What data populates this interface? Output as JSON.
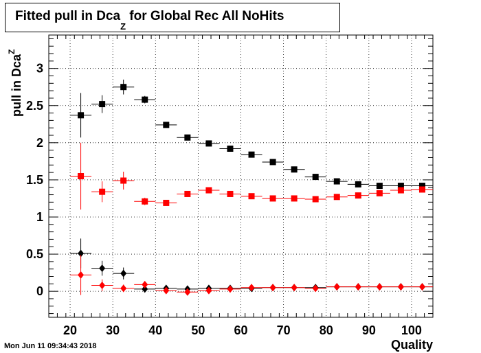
{
  "title": {
    "main": "Fitted pull in Dca",
    "sub": "Z",
    "rest": " for Global Rec All NoHits"
  },
  "ylabel": {
    "main": "pull in Dca",
    "sub": "Z"
  },
  "xlabel": "Quality",
  "timestamp": "Mon Jun 11 09:34:43 2018",
  "colors": {
    "black": "#000000",
    "red": "#ff0000",
    "grid": "#000000"
  },
  "chart_data": {
    "type": "scatter",
    "xlim": [
      15,
      105
    ],
    "ylim": [
      -0.35,
      3.45
    ],
    "grid": true,
    "xticks": [
      20,
      30,
      40,
      50,
      60,
      70,
      80,
      90,
      100
    ],
    "yticks": [
      0,
      0.5,
      1,
      1.5,
      2,
      2.5,
      3
    ],
    "ytick_labels": [
      "0",
      "0.5",
      "1",
      "1.5",
      "2",
      "2.5",
      "3"
    ],
    "series": [
      {
        "color": "black",
        "marker": "square",
        "x": [
          22.5,
          27.5,
          32.5,
          37.5,
          42.5,
          47.5,
          52.5,
          57.5,
          62.5,
          67.5,
          72.5,
          77.5,
          82.5,
          87.5,
          92.5,
          97.5,
          102.5
        ],
        "y": [
          2.37,
          2.52,
          2.75,
          2.58,
          2.24,
          2.07,
          1.99,
          1.92,
          1.84,
          1.74,
          1.64,
          1.54,
          1.48,
          1.44,
          1.42,
          1.42,
          1.42
        ],
        "yerr": [
          0.3,
          0.12,
          0.1,
          0.05,
          0.03,
          0.03,
          0.02,
          0.02,
          0.02,
          0.02,
          0.02,
          0.02,
          0.02,
          0.02,
          0.01,
          0.01,
          0.01
        ]
      },
      {
        "color": "red",
        "marker": "square",
        "x": [
          22.5,
          27.5,
          32.5,
          37.5,
          42.5,
          47.5,
          52.5,
          57.5,
          62.5,
          67.5,
          72.5,
          77.5,
          82.5,
          87.5,
          92.5,
          97.5,
          102.5
        ],
        "y": [
          1.55,
          1.34,
          1.49,
          1.21,
          1.19,
          1.31,
          1.36,
          1.31,
          1.28,
          1.25,
          1.25,
          1.24,
          1.27,
          1.29,
          1.32,
          1.36,
          1.37
        ],
        "yerr": [
          0.45,
          0.14,
          0.12,
          0.05,
          0.03,
          0.03,
          0.02,
          0.02,
          0.02,
          0.02,
          0.02,
          0.02,
          0.02,
          0.02,
          0.01,
          0.01,
          0.01
        ]
      },
      {
        "color": "black",
        "marker": "diamond",
        "x": [
          22.5,
          27.5,
          32.5,
          37.5,
          42.5,
          47.5,
          52.5,
          57.5,
          62.5,
          67.5,
          72.5,
          77.5,
          82.5,
          87.5,
          92.5,
          97.5,
          102.5
        ],
        "y": [
          0.51,
          0.31,
          0.24,
          0.03,
          0.04,
          0.03,
          0.04,
          0.04,
          0.04,
          0.05,
          0.05,
          0.05,
          0.06,
          0.06,
          0.06,
          0.06,
          0.06
        ],
        "yerr": [
          0.2,
          0.1,
          0.08,
          0.03,
          0.02,
          0.02,
          0.01,
          0.01,
          0.01,
          0.01,
          0.01,
          0.01,
          0.01,
          0.01,
          0.01,
          0.01,
          0.01
        ]
      },
      {
        "color": "red",
        "marker": "diamond",
        "x": [
          22.5,
          27.5,
          32.5,
          37.5,
          42.5,
          47.5,
          52.5,
          57.5,
          62.5,
          67.5,
          72.5,
          77.5,
          82.5,
          87.5,
          92.5,
          97.5,
          102.5
        ],
        "y": [
          0.22,
          0.08,
          0.04,
          0.09,
          0.01,
          -0.01,
          0.01,
          0.03,
          0.05,
          0.05,
          0.05,
          0.04,
          0.06,
          0.06,
          0.06,
          0.06,
          0.06
        ],
        "yerr": [
          0.27,
          0.08,
          0.05,
          0.03,
          0.02,
          0.02,
          0.01,
          0.01,
          0.01,
          0.01,
          0.01,
          0.01,
          0.01,
          0.01,
          0.01,
          0.01,
          0.01
        ]
      }
    ]
  }
}
